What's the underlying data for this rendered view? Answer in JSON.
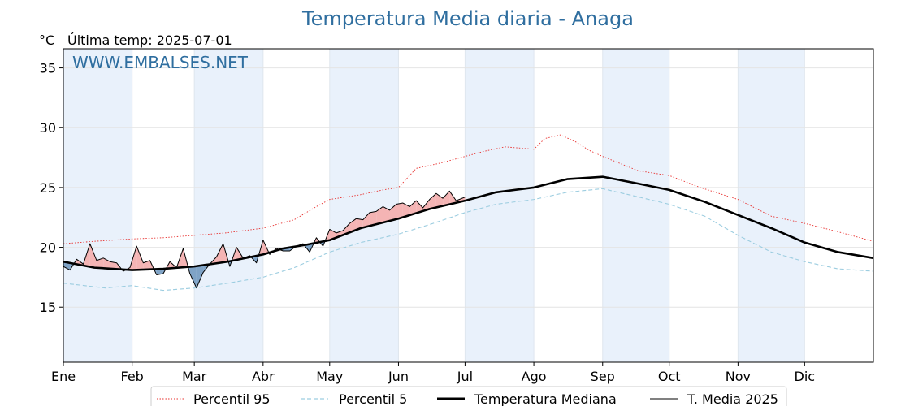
{
  "chart_data": {
    "type": "line",
    "title": "Temperatura Media diaria - Anaga",
    "unit_label": "°C",
    "last_temp_label": "Última temp: 2025-07-01",
    "watermark": "WWW.EMBALSES.NET",
    "x_tick_labels": [
      "Ene",
      "Feb",
      "Mar",
      "Abr",
      "May",
      "Jun",
      "Jul",
      "Ago",
      "Sep",
      "Oct",
      "Nov",
      "Dic"
    ],
    "x_range_days": [
      1,
      366
    ],
    "y_ticks": [
      15,
      20,
      25,
      30,
      35
    ],
    "ylim": [
      10.4,
      36.6
    ],
    "grid": true,
    "legend_position": "bottom-center",
    "colors": {
      "title": "#2f6e9f",
      "p95": "#e8312f",
      "p5": "#9ccde0",
      "median": "#000000",
      "current": "#000000",
      "above_fill": "#f4b4b4",
      "below_fill": "#7fa3c6",
      "month_shade": "#e9f1fb"
    },
    "series": [
      {
        "name": "Percentil 95",
        "style": "dotted",
        "x": [
          1,
          15,
          32,
          46,
          60,
          74,
          91,
          105,
          115,
          121,
          135,
          145,
          152,
          160,
          170,
          182,
          190,
          200,
          213,
          218,
          225,
          232,
          238,
          244,
          252,
          260,
          274,
          288,
          305,
          320,
          335,
          350,
          366
        ],
        "values": [
          20.3,
          20.5,
          20.7,
          20.8,
          21.0,
          21.2,
          21.6,
          22.3,
          23.4,
          24.0,
          24.4,
          24.8,
          25.0,
          26.6,
          27.0,
          27.6,
          28.0,
          28.4,
          28.2,
          29.1,
          29.4,
          28.8,
          28.1,
          27.6,
          27.0,
          26.4,
          26.0,
          25.0,
          24.0,
          22.6,
          22.0,
          21.3,
          20.5
        ]
      },
      {
        "name": "Percentil 5",
        "style": "dashed",
        "x": [
          1,
          20,
          32,
          46,
          60,
          75,
          91,
          105,
          121,
          135,
          152,
          166,
          182,
          196,
          213,
          228,
          244,
          258,
          274,
          290,
          305,
          320,
          335,
          350,
          366
        ],
        "values": [
          17.0,
          16.6,
          16.8,
          16.4,
          16.6,
          17.0,
          17.5,
          18.3,
          19.6,
          20.4,
          21.1,
          21.9,
          22.9,
          23.6,
          24.0,
          24.6,
          24.9,
          24.3,
          23.6,
          22.6,
          21.0,
          19.6,
          18.8,
          18.2,
          18.0
        ]
      },
      {
        "name": "Temperatura Mediana",
        "style": "solid-thick",
        "x": [
          1,
          15,
          32,
          46,
          60,
          75,
          91,
          100,
          110,
          121,
          135,
          152,
          166,
          182,
          196,
          213,
          228,
          244,
          258,
          274,
          290,
          305,
          320,
          335,
          350,
          366
        ],
        "values": [
          18.8,
          18.3,
          18.1,
          18.2,
          18.4,
          18.8,
          19.4,
          19.9,
          20.2,
          20.6,
          21.6,
          22.4,
          23.2,
          23.9,
          24.6,
          25.0,
          25.7,
          25.9,
          25.4,
          24.8,
          23.8,
          22.7,
          21.6,
          20.4,
          19.6,
          19.1
        ]
      },
      {
        "name": "T. Media 2025",
        "style": "solid-thin",
        "x": [
          1,
          4,
          7,
          10,
          13,
          16,
          19,
          22,
          25,
          28,
          31,
          34,
          37,
          40,
          43,
          46,
          49,
          52,
          55,
          58,
          61,
          64,
          67,
          70,
          73,
          76,
          79,
          82,
          85,
          88,
          91,
          94,
          97,
          100,
          103,
          106,
          109,
          112,
          115,
          118,
          121,
          124,
          127,
          130,
          133,
          136,
          139,
          142,
          145,
          148,
          151,
          154,
          157,
          160,
          163,
          166,
          169,
          172,
          175,
          178,
          182
        ],
        "values": [
          18.4,
          18.1,
          19.0,
          18.6,
          20.3,
          18.9,
          19.1,
          18.8,
          18.7,
          18.0,
          18.3,
          20.1,
          18.7,
          18.9,
          17.7,
          17.8,
          18.8,
          18.3,
          19.9,
          17.8,
          16.6,
          17.9,
          18.6,
          19.2,
          20.3,
          18.4,
          20.0,
          19.1,
          19.3,
          18.7,
          20.6,
          19.4,
          19.9,
          19.7,
          19.7,
          20.1,
          20.3,
          19.6,
          20.8,
          20.1,
          21.5,
          21.2,
          21.4,
          22.0,
          22.4,
          22.3,
          22.9,
          23.0,
          23.4,
          23.1,
          23.6,
          23.7,
          23.4,
          23.9,
          23.3,
          24.0,
          24.5,
          24.1,
          24.7,
          23.9,
          24.2
        ]
      }
    ]
  }
}
